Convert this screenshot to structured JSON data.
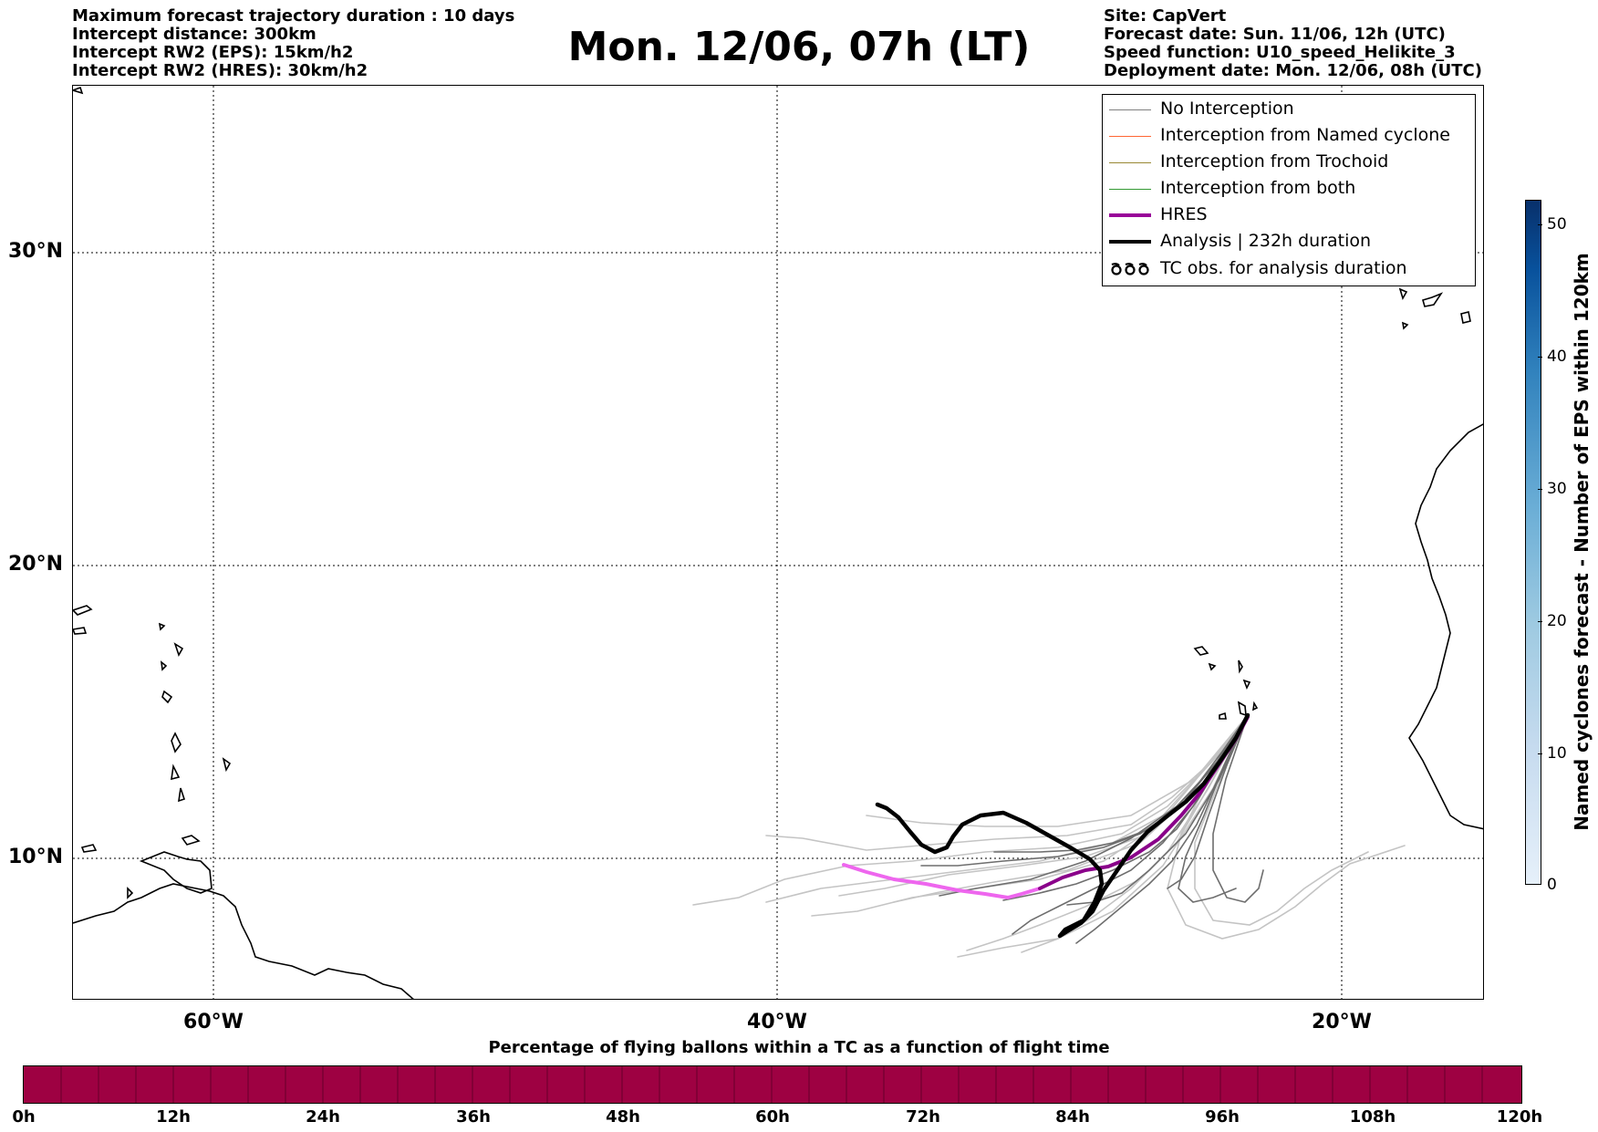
{
  "header_left": [
    "Maximum forecast trajectory duration : 10 days",
    "Intercept distance: 300km",
    "Intercept RW2 (EPS):  15km/h2",
    "Intercept RW2 (HRES): 30km/h2"
  ],
  "title": "Mon. 12/06, 07h (LT)",
  "header_right": [
    "Site: CapVert",
    "Forecast date: Sun. 11/06, 12h (UTC)",
    "Speed function: U10_speed_Helikite_3",
    "Deployment date: Mon. 12/06, 08h (UTC)"
  ],
  "map": {
    "lat_labels": [
      "30°N",
      "20°N",
      "10°N"
    ],
    "lon_labels": [
      "60°W",
      "40°W",
      "20°W"
    ]
  },
  "legend": [
    {
      "label": "No Interception",
      "color": "#808080"
    },
    {
      "label": "Interception from Named cyclone",
      "color": "#ff6633"
    },
    {
      "label": "Interception from Trochoid",
      "color": "#998833"
    },
    {
      "label": "Interception from both",
      "color": "#339933"
    },
    {
      "label": "HRES",
      "color": "#990099"
    },
    {
      "label": "Analysis | 232h duration",
      "color": "#000000"
    },
    {
      "label": "TC obs. for analysis duration",
      "icon": "tc-symbol-icon"
    }
  ],
  "right_colorbar": {
    "label": "Named cyclones forecast - Number of EPS within 120km",
    "ticks": [
      "50",
      "40",
      "30",
      "20",
      "10",
      "0"
    ],
    "colors": [
      "#e6f0fa",
      "#08306b"
    ]
  },
  "bottom_colorbar": {
    "title": "Percentage of flying ballons within a TC as a function of flight time",
    "ticks": [
      "0h",
      "12h",
      "24h",
      "36h",
      "48h",
      "60h",
      "72h",
      "84h",
      "96h",
      "108h",
      "120h"
    ],
    "color": "#9e0142"
  }
}
